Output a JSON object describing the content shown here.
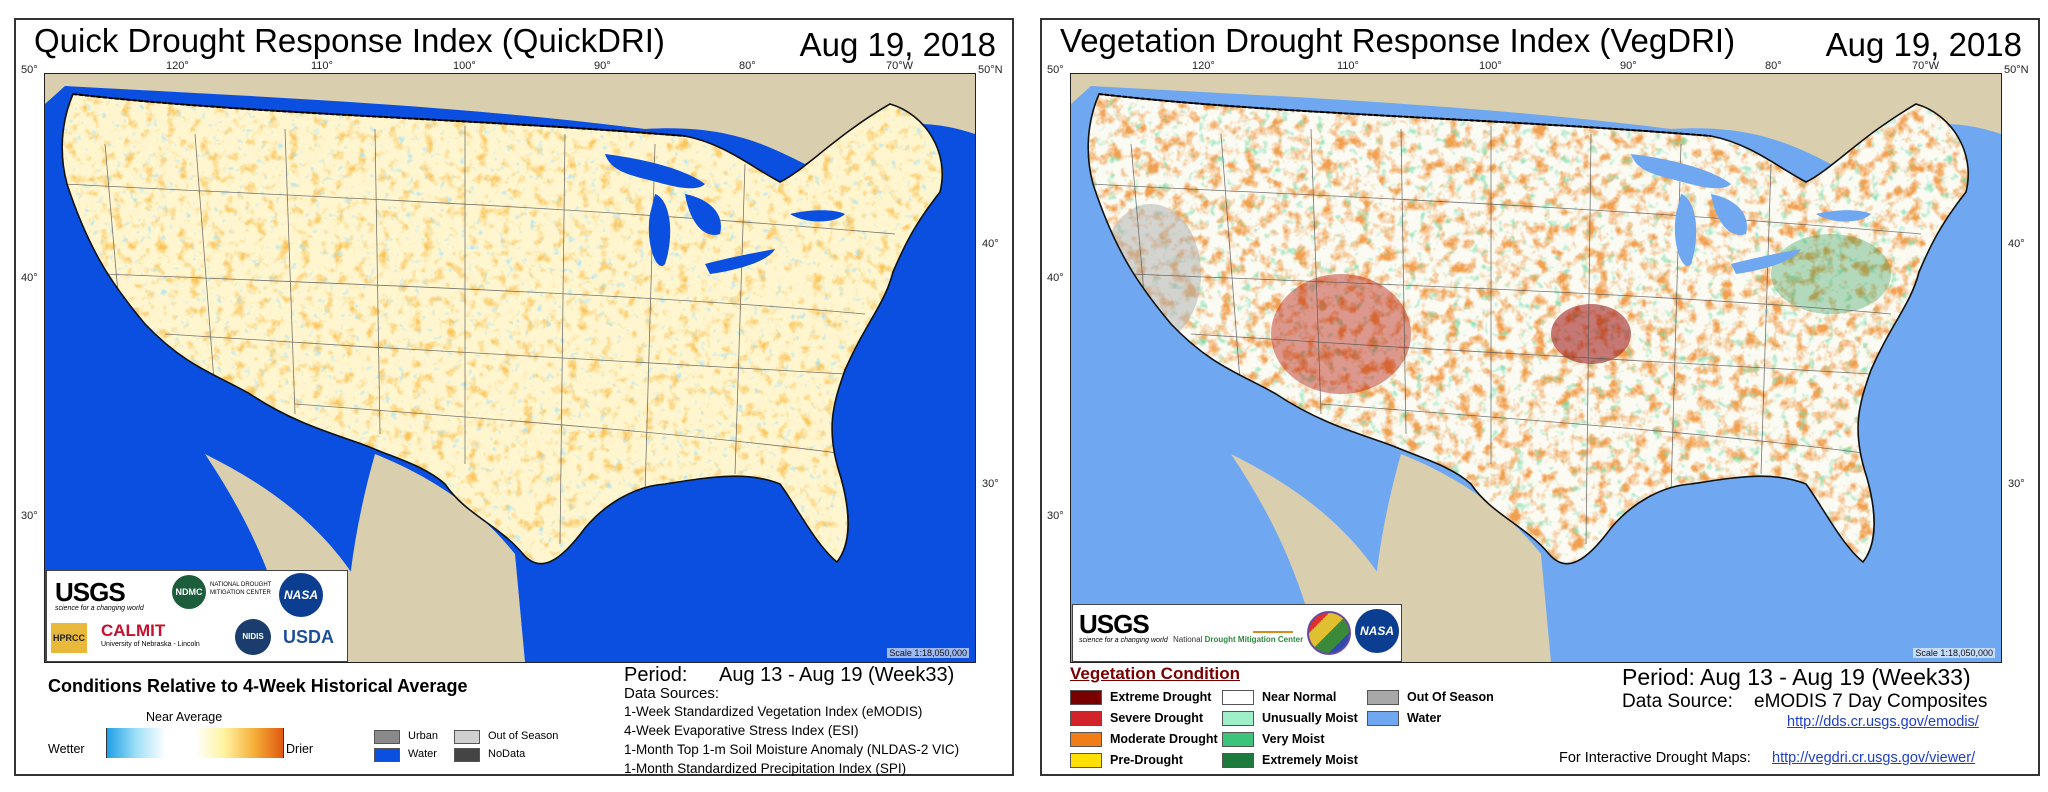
{
  "left_panel": {
    "title": "Quick Drought Response Index (QuickDRI)",
    "date": "Aug 19, 2018",
    "lon_ticks": [
      "120°",
      "110°",
      "100°",
      "90°",
      "80°",
      "70°W"
    ],
    "lat_ticks_left": [
      "50°",
      "40°",
      "30°"
    ],
    "lat_ticks_right": [
      "50°N",
      "40°",
      "30°"
    ],
    "scale": "Scale 1:18,050,000",
    "logos": {
      "usgs": "USGS",
      "usgs_tag": "science for a changing world",
      "ndmc": "NDMC",
      "ndmc_full": "NATIONAL DROUGHT MITIGATION CENTER",
      "nasa": "NASA",
      "hprcc": "HPRCC",
      "calmit": "CALMIT",
      "calmit_sub": "University of Nebraska - Lincoln",
      "ncep": "NIDIS",
      "usda": "USDA"
    },
    "legend": {
      "title": "Conditions Relative to 4-Week Historical Average",
      "near_average": "Near Average",
      "wetter": "Wetter",
      "drier": "Drier",
      "urban": "Urban",
      "water": "Water",
      "out_of_season": "Out of Season",
      "nodata": "NoData"
    },
    "period_label": "Period:",
    "period": "Aug 13 - Aug 19 (Week33)",
    "sources_label": "Data Sources:",
    "sources": [
      "1-Week Standardized Vegetation Index (eMODIS)",
      "4-Week Evaporative Stress Index (ESI)",
      "1-Month Top 1-m Soil Moisture Anomaly (NLDAS-2 VIC)",
      "1-Month Standardized Precipitation Index (SPI)"
    ]
  },
  "right_panel": {
    "title": "Vegetation Drought Response Index (VegDRI)",
    "date": "Aug 19, 2018",
    "lon_ticks": [
      "120°",
      "110°",
      "100°",
      "90°",
      "80°",
      "70°W"
    ],
    "lat_ticks_left": [
      "50°",
      "40°",
      "30°"
    ],
    "lat_ticks_right": [
      "50°N",
      "40°",
      "30°"
    ],
    "scale": "Scale 1:18,050,000",
    "logos": {
      "usgs": "USGS",
      "usgs_tag": "science for a changing world",
      "ndmc_a": "National ",
      "ndmc_b": "Drought Mitigation Center",
      "nasa": "NASA"
    },
    "legend": {
      "title": "Vegetation Condition",
      "items": [
        {
          "label": "Extreme Drought",
          "color": "#7a0000"
        },
        {
          "label": "Severe Drought",
          "color": "#d2232a"
        },
        {
          "label": "Moderate Drought",
          "color": "#f07d18"
        },
        {
          "label": "Pre-Drought",
          "color": "#ffe000"
        },
        {
          "label": "Near Normal",
          "color": "#ffffff"
        },
        {
          "label": "Unusually Moist",
          "color": "#9ff0c8"
        },
        {
          "label": "Very Moist",
          "color": "#3cc47a"
        },
        {
          "label": "Extremely Moist",
          "color": "#1c7a3c"
        },
        {
          "label": "Out Of Season",
          "color": "#a8a8a8"
        },
        {
          "label": "Water",
          "color": "#6fa8f0"
        }
      ]
    },
    "period": "Period:  Aug 13 - Aug 19 (Week33)",
    "source_label": "Data Source:",
    "source": "eMODIS 7 Day Composites",
    "source_url": "http://dds.cr.usgs.gov/emodis/",
    "maps_label": "For Interactive Drought Maps:",
    "maps_url": "http://vegdri.cr.usgs.gov/viewer/"
  },
  "colors": {
    "land_outside": "#d9ceae",
    "water_left": "#0a4fe0",
    "water_right": "#6fa8f0"
  }
}
